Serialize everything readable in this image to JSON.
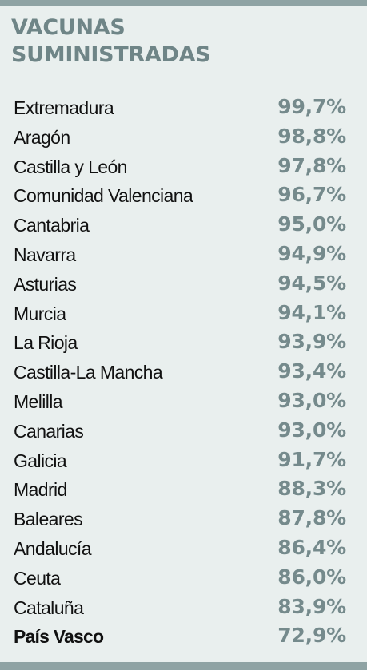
{
  "chart_data": {
    "type": "table",
    "title": [
      "VACUNAS",
      "SUMINISTRADAS"
    ],
    "rows": [
      {
        "region": "Extremadura",
        "value": "99,7%"
      },
      {
        "region": "Aragón",
        "value": "98,8%"
      },
      {
        "region": "Castilla y León",
        "value": "97,8%"
      },
      {
        "region": "Comunidad Valenciana",
        "value": "96,7%"
      },
      {
        "region": "Cantabria",
        "value": "95,0%"
      },
      {
        "region": "Navarra",
        "value": "94,9%"
      },
      {
        "region": "Asturias",
        "value": "94,5%"
      },
      {
        "region": "Murcia",
        "value": "94,1%"
      },
      {
        "region": "La Rioja",
        "value": "93,9%"
      },
      {
        "region": "Castilla-La Mancha",
        "value": "93,4%"
      },
      {
        "region": "Melilla",
        "value": "93,0%"
      },
      {
        "region": "Canarias",
        "value": "93,0%"
      },
      {
        "region": "Galicia",
        "value": "91,7%"
      },
      {
        "region": "Madrid",
        "value": "88,3%"
      },
      {
        "region": "Baleares",
        "value": "87,8%"
      },
      {
        "region": "Andalucía",
        "value": "86,4%"
      },
      {
        "region": "Ceuta",
        "value": "86,0%"
      },
      {
        "region": "Cataluña",
        "value": "83,9%"
      },
      {
        "region": "País Vasco",
        "value": "72,9%",
        "highlight": true
      }
    ]
  },
  "colors": {
    "background": "#e9efee",
    "accent": "#758a8c",
    "rule": "#8fa3a4",
    "text": "#111111"
  }
}
